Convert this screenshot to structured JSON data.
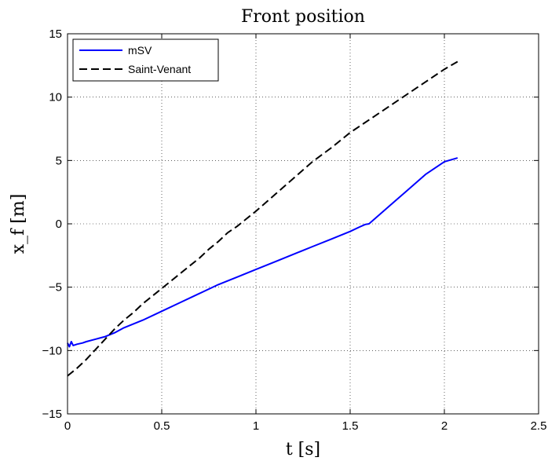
{
  "chart_data": {
    "type": "line",
    "title": "Front position",
    "xlabel": "t [s]",
    "ylabel": "x_f [m]",
    "xlim": [
      0,
      2.5
    ],
    "ylim": [
      -15,
      15
    ],
    "xticks": [
      0,
      0.5,
      1,
      1.5,
      2,
      2.5
    ],
    "xtick_labels": [
      "0",
      "0.5",
      "1",
      "1.5",
      "2",
      "2.5"
    ],
    "yticks": [
      -15,
      -10,
      -5,
      0,
      5,
      10,
      15
    ],
    "ytick_labels": [
      "−15",
      "−10",
      "−5",
      "0",
      "5",
      "10",
      "15"
    ],
    "grid": true,
    "legend_position": "top-left",
    "series": [
      {
        "name": "mSV",
        "color": "#0000ff",
        "dash": "solid",
        "x": [
          0,
          0.01,
          0.02,
          0.03,
          0.05,
          0.08,
          0.1,
          0.15,
          0.2,
          0.25,
          0.3,
          0.4,
          0.5,
          0.6,
          0.7,
          0.8,
          0.9,
          1.0,
          1.1,
          1.2,
          1.3,
          1.4,
          1.5,
          1.55,
          1.58,
          1.6,
          1.7,
          1.8,
          1.9,
          2.0,
          2.07
        ],
        "y": [
          -9.4,
          -9.7,
          -9.3,
          -9.6,
          -9.5,
          -9.4,
          -9.3,
          -9.1,
          -8.9,
          -8.6,
          -8.2,
          -7.6,
          -6.9,
          -6.2,
          -5.5,
          -4.8,
          -4.2,
          -3.6,
          -3.0,
          -2.4,
          -1.8,
          -1.2,
          -0.6,
          -0.25,
          -0.05,
          0.0,
          1.3,
          2.6,
          3.9,
          4.9,
          5.2
        ]
      },
      {
        "name": "Saint-Venant",
        "color": "#000000",
        "dash": "dashed",
        "x": [
          0,
          0.05,
          0.1,
          0.15,
          0.2,
          0.25,
          0.3,
          0.35,
          0.4,
          0.45,
          0.5,
          0.55,
          0.6,
          0.65,
          0.7,
          0.75,
          0.8,
          0.85,
          0.9,
          0.95,
          1.0,
          1.1,
          1.2,
          1.3,
          1.4,
          1.45,
          1.5,
          1.6,
          1.7,
          1.8,
          1.9,
          2.0,
          2.07
        ],
        "y": [
          -12.0,
          -11.4,
          -10.7,
          -9.9,
          -9.1,
          -8.3,
          -7.6,
          -7.0,
          -6.3,
          -5.7,
          -5.1,
          -4.5,
          -3.9,
          -3.3,
          -2.7,
          -2.0,
          -1.4,
          -0.7,
          -0.2,
          0.4,
          1.0,
          2.3,
          3.6,
          4.9,
          6.0,
          6.6,
          7.2,
          8.2,
          9.2,
          10.2,
          11.2,
          12.2,
          12.8
        ]
      }
    ]
  }
}
